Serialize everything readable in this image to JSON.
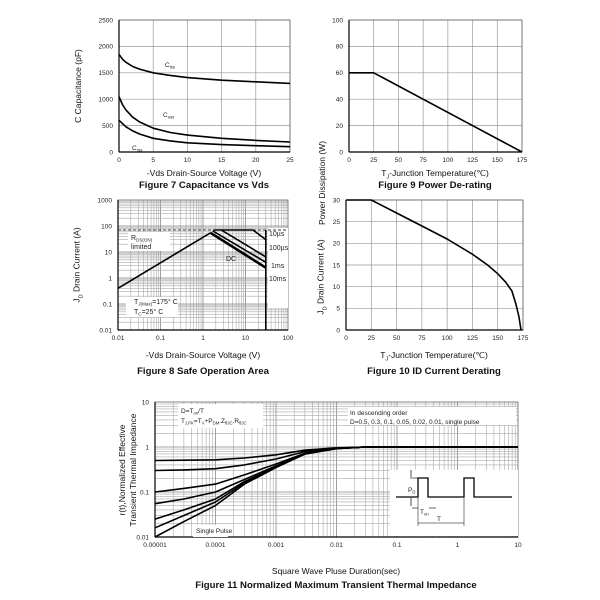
{
  "chart_data": [
    {
      "type": "line",
      "title": "Figure 7 Capacitance vs Vds",
      "xlabel": "-Vds Drain-Source Voltage (V)",
      "ylabel": "C Capacitance (pF)",
      "xscale": "linear",
      "yscale": "linear",
      "xlim": [
        0,
        25
      ],
      "ylim": [
        0,
        2500
      ],
      "xticks": [
        0,
        5,
        10,
        15,
        20,
        25
      ],
      "yticks": [
        0,
        500,
        1000,
        1500,
        2000,
        2500
      ],
      "grid": true,
      "series": [
        {
          "name": "Ciss",
          "label": {
            "main": "C",
            "sub": "iss"
          },
          "x": [
            0,
            0.5,
            1,
            2,
            3,
            5,
            7.5,
            10,
            15,
            20,
            25
          ],
          "y": [
            1850,
            1760,
            1700,
            1620,
            1570,
            1500,
            1450,
            1410,
            1360,
            1330,
            1300
          ]
        },
        {
          "name": "Coss",
          "label": {
            "main": "C",
            "sub": "oss"
          },
          "x": [
            0,
            0.5,
            1,
            2,
            3,
            5,
            7.5,
            10,
            15,
            20,
            25
          ],
          "y": [
            1050,
            900,
            800,
            660,
            570,
            450,
            370,
            320,
            260,
            220,
            190
          ]
        },
        {
          "name": "Crss",
          "label": {
            "main": "C",
            "sub": "rss"
          },
          "x": [
            0,
            0.5,
            1,
            2,
            3,
            5,
            7.5,
            10,
            15,
            20,
            25
          ],
          "y": [
            600,
            540,
            480,
            400,
            340,
            260,
            210,
            175,
            140,
            120,
            100
          ]
        }
      ]
    },
    {
      "type": "line",
      "title": "Figure 9 Power De-rating",
      "xlabel": {
        "main": "T",
        "sub": "J",
        "rest": "-Junction Temperature(℃)"
      },
      "ylabel": "Power Dissipation (W)",
      "xscale": "linear",
      "yscale": "linear",
      "xlim": [
        0,
        175
      ],
      "ylim": [
        0,
        100
      ],
      "xticks": [
        0,
        25,
        50,
        75,
        100,
        125,
        150,
        175
      ],
      "yticks": [
        0,
        20,
        40,
        60,
        80,
        100
      ],
      "grid": true,
      "series": [
        {
          "x": [
            0,
            25,
            175
          ],
          "y": [
            60,
            60,
            0
          ]
        }
      ]
    },
    {
      "type": "line",
      "title": "Figure 8 Safe Operation Area",
      "xlabel": "-Vds Drain-Source Voltage (V)",
      "ylabel": {
        "main": "J",
        "sub": "D",
        "rest": " Drain Current (A)"
      },
      "xscale": "log",
      "yscale": "log",
      "xlim": [
        0.01,
        100
      ],
      "ylim": [
        0.01,
        1000
      ],
      "xticks": [
        0.01,
        0.1,
        1,
        10,
        100
      ],
      "xticklabels": [
        "0.01",
        "0.1",
        "1",
        "10",
        "100"
      ],
      "yticks": [
        0.01,
        0.1,
        1,
        10,
        100,
        1000
      ],
      "yticklabels": [
        "0.01",
        "0.1",
        "1",
        "10",
        "100",
        "1000"
      ],
      "grid": true,
      "series": [
        {
          "x": [
            0.01,
            100
          ],
          "y": [
            70,
            70
          ],
          "style": "dashed"
        },
        {
          "x": [
            0.01,
            1.5
          ],
          "y": [
            0.4,
            55
          ]
        },
        {
          "name": "10µs",
          "x": [
            1.8,
            15,
            30
          ],
          "y": [
            70,
            70,
            30
          ]
        },
        {
          "name": "100µs",
          "x": [
            2.7,
            30
          ],
          "y": [
            70,
            6.5
          ]
        },
        {
          "name": "1ms",
          "x": [
            1.7,
            30
          ],
          "y": [
            65,
            4
          ]
        },
        {
          "name": "DC",
          "x": [
            1.5,
            30
          ],
          "y": [
            55,
            2.5
          ],
          "style": "thick"
        },
        {
          "x": [
            30,
            30
          ],
          "y": [
            0.01,
            70
          ]
        }
      ],
      "annotations": {
        "rds": {
          "main": "R",
          "sub": "DS(ON)",
          "line2": "limited"
        },
        "dc": "DC",
        "t10us": "10µs",
        "t100us": "100µs",
        "t1ms": "1ms",
        "t10ms": "10ms",
        "tj": {
          "main": "T",
          "sub": "J(Max)",
          "rest": "=175° C"
        },
        "tc": {
          "main": "T",
          "sub": "C",
          "rest": "=25° C"
        }
      }
    },
    {
      "type": "line",
      "title": "Figure 10 ID Current Derating",
      "xlabel": {
        "main": "T",
        "sub": "J",
        "rest": "-Junction Temperature(℃)"
      },
      "ylabel": {
        "main": "J",
        "sub": "D",
        "rest": " Drain Current (A)"
      },
      "xscale": "linear",
      "yscale": "linear",
      "xlim": [
        0,
        175
      ],
      "ylim": [
        0,
        30
      ],
      "xticks": [
        0,
        25,
        50,
        75,
        100,
        125,
        150,
        175
      ],
      "yticks": [
        0,
        5,
        10,
        15,
        20,
        25,
        30
      ],
      "grid": true,
      "series": [
        {
          "x": [
            0,
            25,
            50,
            75,
            100,
            125,
            140,
            150,
            158,
            164,
            168,
            171,
            173
          ],
          "y": [
            30,
            30,
            27,
            24,
            21,
            17.5,
            15,
            13,
            11,
            9,
            6,
            3,
            0
          ]
        }
      ]
    },
    {
      "type": "line",
      "title": "Figure 11 Normalized Maximum Transient Thermal Impedance",
      "xlabel": "Square Wave Pluse Duration(sec)",
      "ylabel": [
        "r(t),Normalized Effective",
        "Transient Thermal Impedance"
      ],
      "xscale": "log",
      "yscale": "log",
      "xlim": [
        1e-05,
        10
      ],
      "ylim": [
        0.01,
        10
      ],
      "xticks": [
        1e-05,
        0.0001,
        0.001,
        0.01,
        0.1,
        1,
        10
      ],
      "xticklabels": [
        "0.00001",
        "0.0001",
        "0.001",
        "0.01",
        "0.1",
        "1",
        "10"
      ],
      "yticks": [
        0.01,
        0.1,
        1,
        10
      ],
      "yticklabels": [
        "0.01",
        "0.1",
        "1",
        "10"
      ],
      "grid": true,
      "series": [
        {
          "name": "D=0.5",
          "x": [
            1e-05,
            3e-05,
            0.0001,
            0.0003,
            0.001,
            0.003,
            0.01,
            0.03,
            1,
            10
          ],
          "y": [
            0.5,
            0.51,
            0.52,
            0.57,
            0.67,
            0.85,
            0.96,
            1,
            1,
            1
          ]
        },
        {
          "name": "D=0.3",
          "x": [
            1e-05,
            3e-05,
            0.0001,
            0.0003,
            0.001,
            0.003,
            0.01,
            0.03,
            1,
            10
          ],
          "y": [
            0.3,
            0.31,
            0.33,
            0.4,
            0.54,
            0.79,
            0.94,
            1,
            1,
            1
          ]
        },
        {
          "name": "D=0.1",
          "x": [
            1e-05,
            3e-05,
            0.0001,
            0.0003,
            0.001,
            0.003,
            0.01,
            0.03,
            1,
            10
          ],
          "y": [
            0.1,
            0.12,
            0.15,
            0.24,
            0.42,
            0.73,
            0.93,
            1,
            1,
            1
          ]
        },
        {
          "name": "D=0.05",
          "x": [
            1e-05,
            3e-05,
            0.0001,
            0.0003,
            0.001,
            0.003,
            0.01,
            0.03,
            1,
            10
          ],
          "y": [
            0.055,
            0.07,
            0.1,
            0.19,
            0.38,
            0.71,
            0.92,
            1,
            1,
            1
          ]
        },
        {
          "name": "D=0.02",
          "x": [
            1e-05,
            3e-05,
            0.0001,
            0.0003,
            0.001,
            0.003,
            0.01,
            0.03,
            1,
            10
          ],
          "y": [
            0.025,
            0.04,
            0.07,
            0.17,
            0.36,
            0.7,
            0.92,
            1,
            1,
            1
          ]
        },
        {
          "name": "D=0.01",
          "x": [
            1e-05,
            3e-05,
            0.0001,
            0.0003,
            0.001,
            0.003,
            0.01,
            0.03,
            1,
            10
          ],
          "y": [
            0.016,
            0.03,
            0.06,
            0.16,
            0.36,
            0.7,
            0.92,
            1,
            1,
            1
          ]
        },
        {
          "name": "Single Pulse",
          "x": [
            1e-05,
            3e-05,
            0.0001,
            0.0003,
            0.001,
            0.003,
            0.01,
            0.03,
            1,
            10
          ],
          "y": [
            0.01,
            0.022,
            0.05,
            0.15,
            0.35,
            0.7,
            0.92,
            1,
            1,
            1
          ]
        }
      ],
      "annotations": {
        "duty": {
          "a": "D=T",
          "a_sub": "on",
          "b": "/T"
        },
        "formula": {
          "p1": "T",
          "s1": "J,PK",
          "p2": "=T",
          "s2": "A",
          "p3": "+P",
          "s3": "DM",
          "p4": ".Z",
          "s4": "θJC",
          "p5": ".R",
          "s5": "θJC"
        },
        "order1": "In descending order",
        "order2": "D=0.5, 0.3, 0.1, 0.05, 0.02, 0.01, single pulse",
        "single": "Single Pulse",
        "inset": {
          "pd": "P",
          "pd_sub": "D",
          "ton": "T",
          "ton_sub": "on",
          "t": "T"
        }
      }
    }
  ]
}
